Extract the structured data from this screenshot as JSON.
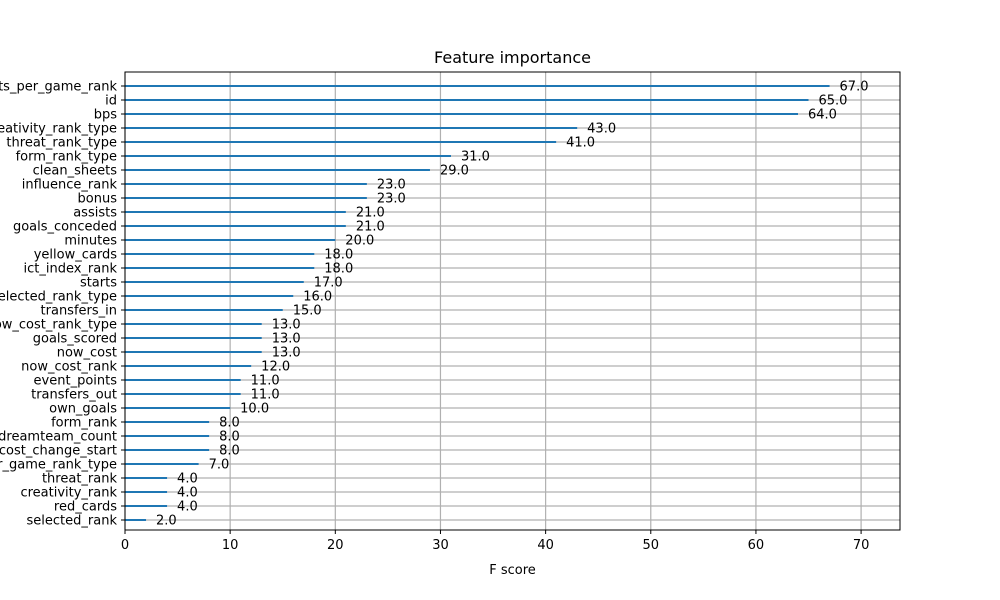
{
  "chart_data": {
    "type": "bar",
    "orientation": "horizontal",
    "title": "Feature importance",
    "xlabel": "F score",
    "ylabel": "",
    "xlim": [
      0,
      73.7
    ],
    "xticks": [
      0,
      10,
      20,
      30,
      40,
      50,
      60,
      70
    ],
    "grid": true,
    "categories": [
      "points_per_game_rank",
      "id",
      "bps",
      "creativity_rank_type",
      "threat_rank_type",
      "form_rank_type",
      "clean_sheets",
      "influence_rank",
      "bonus",
      "assists",
      "goals_conceded",
      "minutes",
      "yellow_cards",
      "ict_index_rank",
      "starts",
      "selected_rank_type",
      "transfers_in",
      "now_cost_rank_type",
      "goals_scored",
      "now_cost",
      "now_cost_rank",
      "event_points",
      "transfers_out",
      "own_goals",
      "form_rank",
      "dreamteam_count",
      "cost_change_start",
      "points_per_game_rank_type",
      "threat_rank",
      "creativity_rank",
      "red_cards",
      "selected_rank"
    ],
    "values": [
      67,
      65,
      64,
      43,
      41,
      31,
      29,
      23,
      23,
      21,
      21,
      20,
      18,
      18,
      17,
      16,
      15,
      13,
      13,
      13,
      12,
      11,
      11,
      10,
      8,
      8,
      8,
      7,
      4,
      4,
      4,
      2
    ],
    "value_labels": [
      "67.0",
      "65.0",
      "64.0",
      "43.0",
      "41.0",
      "31.0",
      "29.0",
      "23.0",
      "23.0",
      "21.0",
      "21.0",
      "20.0",
      "18.0",
      "18.0",
      "17.0",
      "16.0",
      "15.0",
      "13.0",
      "13.0",
      "13.0",
      "12.0",
      "11.0",
      "11.0",
      "10.0",
      "8.0",
      "8.0",
      "8.0",
      "7.0",
      "4.0",
      "4.0",
      "4.0",
      "2.0"
    ],
    "bar_color": "#1f77b4",
    "grid_color": "#b0b0b0"
  }
}
